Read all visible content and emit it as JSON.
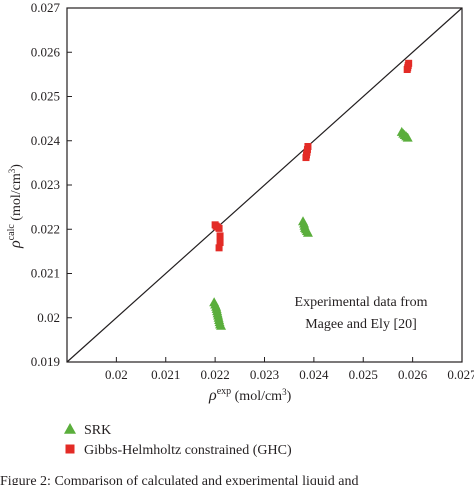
{
  "chart_data": {
    "type": "scatter",
    "xlabel": {
      "symbol": "ρ",
      "sup": "exp",
      "unit": " (mol/cm",
      "unit_sup": "3",
      "unit_end": ")"
    },
    "ylabel": {
      "symbol": "ρ",
      "sup": "calc",
      "unit": " (mol/cm",
      "unit_sup": "3",
      "unit_end": ")"
    },
    "xlim": [
      0.019,
      0.027
    ],
    "ylim": [
      0.019,
      0.027
    ],
    "x_ticks": [
      "0.02",
      "0.021",
      "0.022",
      "0.023",
      "0.024",
      "0.025",
      "0.026",
      "0.027"
    ],
    "y_ticks": [
      "0.019",
      "0.02",
      "0.021",
      "0.022",
      "0.023",
      "0.024",
      "0.025",
      "0.026",
      "0.027"
    ],
    "grid": false,
    "reference_line": "y = x",
    "annotation": [
      "Experimental data from",
      "Magee and Ely [20]"
    ],
    "legend_position": "below",
    "series": [
      {
        "name": "SRK",
        "marker": "triangle",
        "color": "#5aae3c",
        "points": [
          [
            0.02198,
            0.02035
          ],
          [
            0.022,
            0.0203
          ],
          [
            0.02202,
            0.02025
          ],
          [
            0.02203,
            0.0202
          ],
          [
            0.02204,
            0.02015
          ],
          [
            0.02205,
            0.0201
          ],
          [
            0.02206,
            0.02005
          ],
          [
            0.02207,
            0.02
          ],
          [
            0.02208,
            0.01995
          ],
          [
            0.02209,
            0.0199
          ],
          [
            0.0221,
            0.01985
          ],
          [
            0.02212,
            0.01982
          ],
          [
            0.02378,
            0.02218
          ],
          [
            0.0238,
            0.02213
          ],
          [
            0.02381,
            0.02208
          ],
          [
            0.02382,
            0.02203
          ],
          [
            0.02384,
            0.022
          ],
          [
            0.02386,
            0.02196
          ],
          [
            0.02388,
            0.02192
          ],
          [
            0.02578,
            0.0242
          ],
          [
            0.02581,
            0.02416
          ],
          [
            0.02584,
            0.02413
          ],
          [
            0.02587,
            0.0241
          ],
          [
            0.0259,
            0.02407
          ]
        ]
      },
      {
        "name": "Gibbs-Helmholtz constrained (GHC)",
        "marker": "square",
        "color": "#e32b26",
        "points": [
          [
            0.022,
            0.0221
          ],
          [
            0.02202,
            0.02207
          ],
          [
            0.02205,
            0.02205
          ],
          [
            0.02208,
            0.02202
          ],
          [
            0.0221,
            0.02185
          ],
          [
            0.0221,
            0.0217
          ],
          [
            0.02208,
            0.02158
          ],
          [
            0.02388,
            0.02387
          ],
          [
            0.02387,
            0.0238
          ],
          [
            0.02386,
            0.02374
          ],
          [
            0.02385,
            0.02368
          ],
          [
            0.02384,
            0.02362
          ],
          [
            0.02592,
            0.02575
          ],
          [
            0.02591,
            0.0257
          ],
          [
            0.0259,
            0.02565
          ],
          [
            0.02589,
            0.02561
          ]
        ]
      }
    ]
  },
  "caption": "Figure 2: Comparison of calculated and experimental liquid and"
}
